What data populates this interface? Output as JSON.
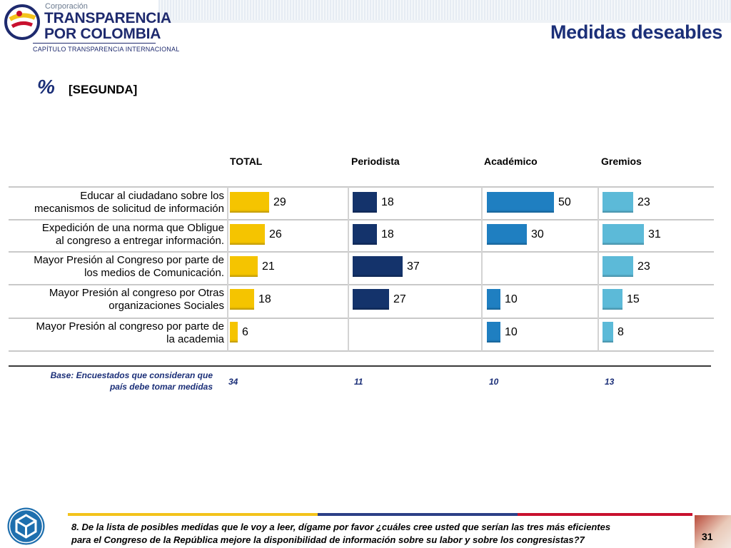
{
  "header": {
    "title": "Medidas deseables",
    "logo": {
      "corp": "Corporación",
      "line1": "TRANSPARENCIA",
      "line2": "POR COLOMBIA",
      "sub": "CAPÍTULO TRANSPARENCIA INTERNACIONAL"
    }
  },
  "subtitle": {
    "percent": "%",
    "label": "[SEGUNDA]"
  },
  "chart_data": {
    "type": "bar",
    "orientation": "horizontal",
    "columns": [
      "TOTAL",
      "Periodista",
      "Académico",
      "Gremios"
    ],
    "categories": [
      "Educar al ciudadano sobre los mecanismos de solicitud de información",
      "Expedición de una norma que Obligue al congreso a entregar información.",
      "Mayor Presión al Congreso por parte de los medios de Comunicación.",
      "Mayor Presión al congreso por Otras organizaciones Sociales",
      "Mayor Presión al congreso por parte de la academia"
    ],
    "category_lines": [
      [
        "Educar al ciudadano sobre los",
        "mecanismos de solicitud de información"
      ],
      [
        "Expedición de una norma que Obligue",
        "al congreso a entregar información."
      ],
      [
        "Mayor Presión al Congreso por parte de",
        "los medios de Comunicación."
      ],
      [
        "Mayor Presión al congreso por Otras",
        "organizaciones Sociales"
      ],
      [
        "Mayor Presión al congreso por parte de",
        "la academia"
      ]
    ],
    "series": [
      {
        "name": "TOTAL",
        "values": [
          29,
          26,
          21,
          18,
          6
        ],
        "color": "#f5c400"
      },
      {
        "name": "Periodista",
        "values": [
          18,
          18,
          37,
          27,
          null
        ],
        "color": "#14336b"
      },
      {
        "name": "Académico",
        "values": [
          50,
          30,
          null,
          10,
          10
        ],
        "color": "#1f7fc1"
      },
      {
        "name": "Gremios",
        "values": [
          23,
          31,
          23,
          15,
          8
        ],
        "color": "#5cbad8"
      }
    ],
    "base": {
      "label": [
        "Base: Encuestados que consideran que",
        "país debe tomar medidas"
      ],
      "values": [
        "34",
        "11",
        "10",
        "13"
      ]
    },
    "unit": "%"
  },
  "footer": {
    "question": [
      "8. De la lista de posibles medidas que le voy a leer, dígame por favor ¿cuáles cree usted que serían las tres más eficientes",
      "para el Congreso de la República mejore la disponibilidad de información sobre su labor y sobre los congresistas?7"
    ],
    "page": "31"
  }
}
